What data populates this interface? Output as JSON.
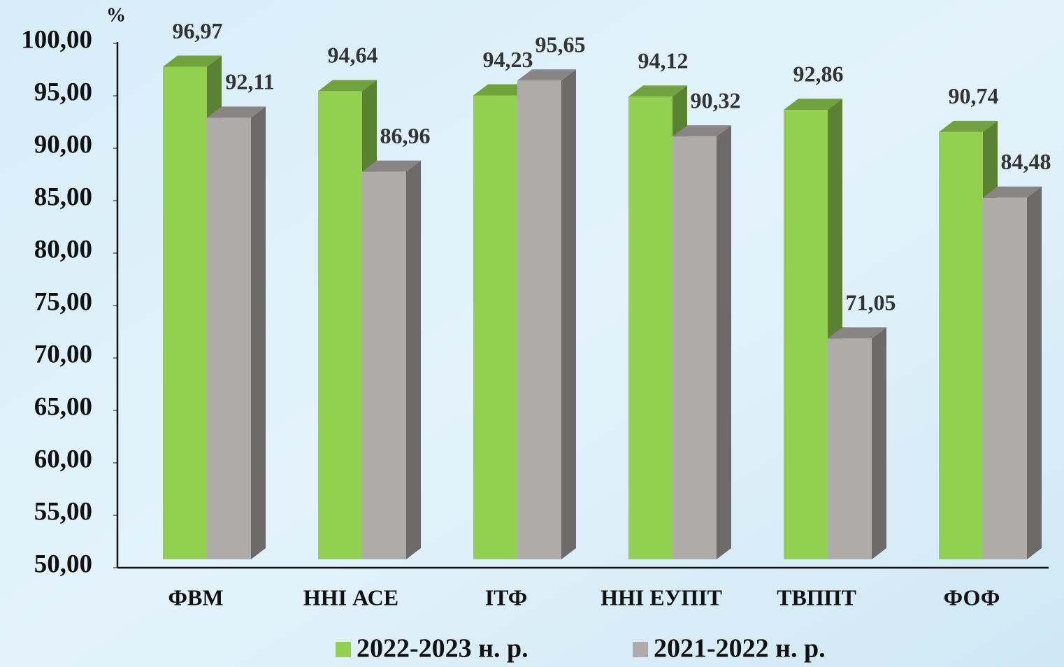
{
  "chart_data": {
    "type": "bar3d",
    "y_label": "%",
    "categories": [
      "ФВМ",
      "ННІ АСЕ",
      "ІТФ",
      "ННІ ЕУПІТ",
      "ТВППТ",
      "ФОФ"
    ],
    "series": [
      {
        "name": "2022-2023  н. р.",
        "color": "#92d050",
        "values": [
          96.97,
          94.64,
          94.23,
          94.12,
          92.86,
          90.74
        ],
        "value_labels": [
          "96,97",
          "94,64",
          "94,23",
          "94,12",
          "92,86",
          "90,74"
        ]
      },
      {
        "name": "2021-2022 н. р.",
        "color": "#b0abab",
        "values": [
          92.11,
          86.96,
          95.65,
          90.32,
          71.05,
          84.48
        ],
        "value_labels": [
          "92,11",
          "86,96",
          "95,65",
          "90,32",
          "71,05",
          "84,48"
        ]
      }
    ],
    "ylim": [
      50,
      100
    ],
    "yticks": [
      {
        "value": 50,
        "label": "50,00"
      },
      {
        "value": 55,
        "label": "55,00"
      },
      {
        "value": 60,
        "label": "60,00"
      },
      {
        "value": 65,
        "label": "65,00"
      },
      {
        "value": 70,
        "label": "70,00"
      },
      {
        "value": 75,
        "label": "75,00"
      },
      {
        "value": 80,
        "label": "80,00"
      },
      {
        "value": 85,
        "label": "85,00"
      },
      {
        "value": 90,
        "label": "90,00"
      },
      {
        "value": 95,
        "label": "95,00"
      },
      {
        "value": 100,
        "label": "100,00"
      }
    ],
    "legend": "bottom"
  }
}
